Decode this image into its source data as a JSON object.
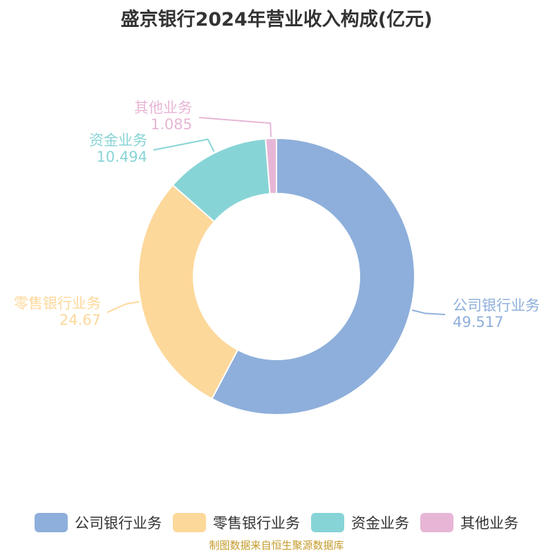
{
  "chart_data": {
    "type": "pie",
    "title": "盛京银行2024年营业收入构成(亿元)",
    "categories": [
      "公司银行业务",
      "零售银行业务",
      "资金业务",
      "其他业务"
    ],
    "values": [
      49.517,
      24.67,
      10.494,
      1.085
    ],
    "value_labels": [
      "49.517",
      "24.67",
      "10.494",
      "1.085"
    ],
    "colors": [
      "#8eafdb",
      "#fdd89b",
      "#87d4d6",
      "#e7b6d6"
    ],
    "donut": true,
    "legend": "bottom",
    "source": "制图数据来自恒生聚源数据库"
  }
}
